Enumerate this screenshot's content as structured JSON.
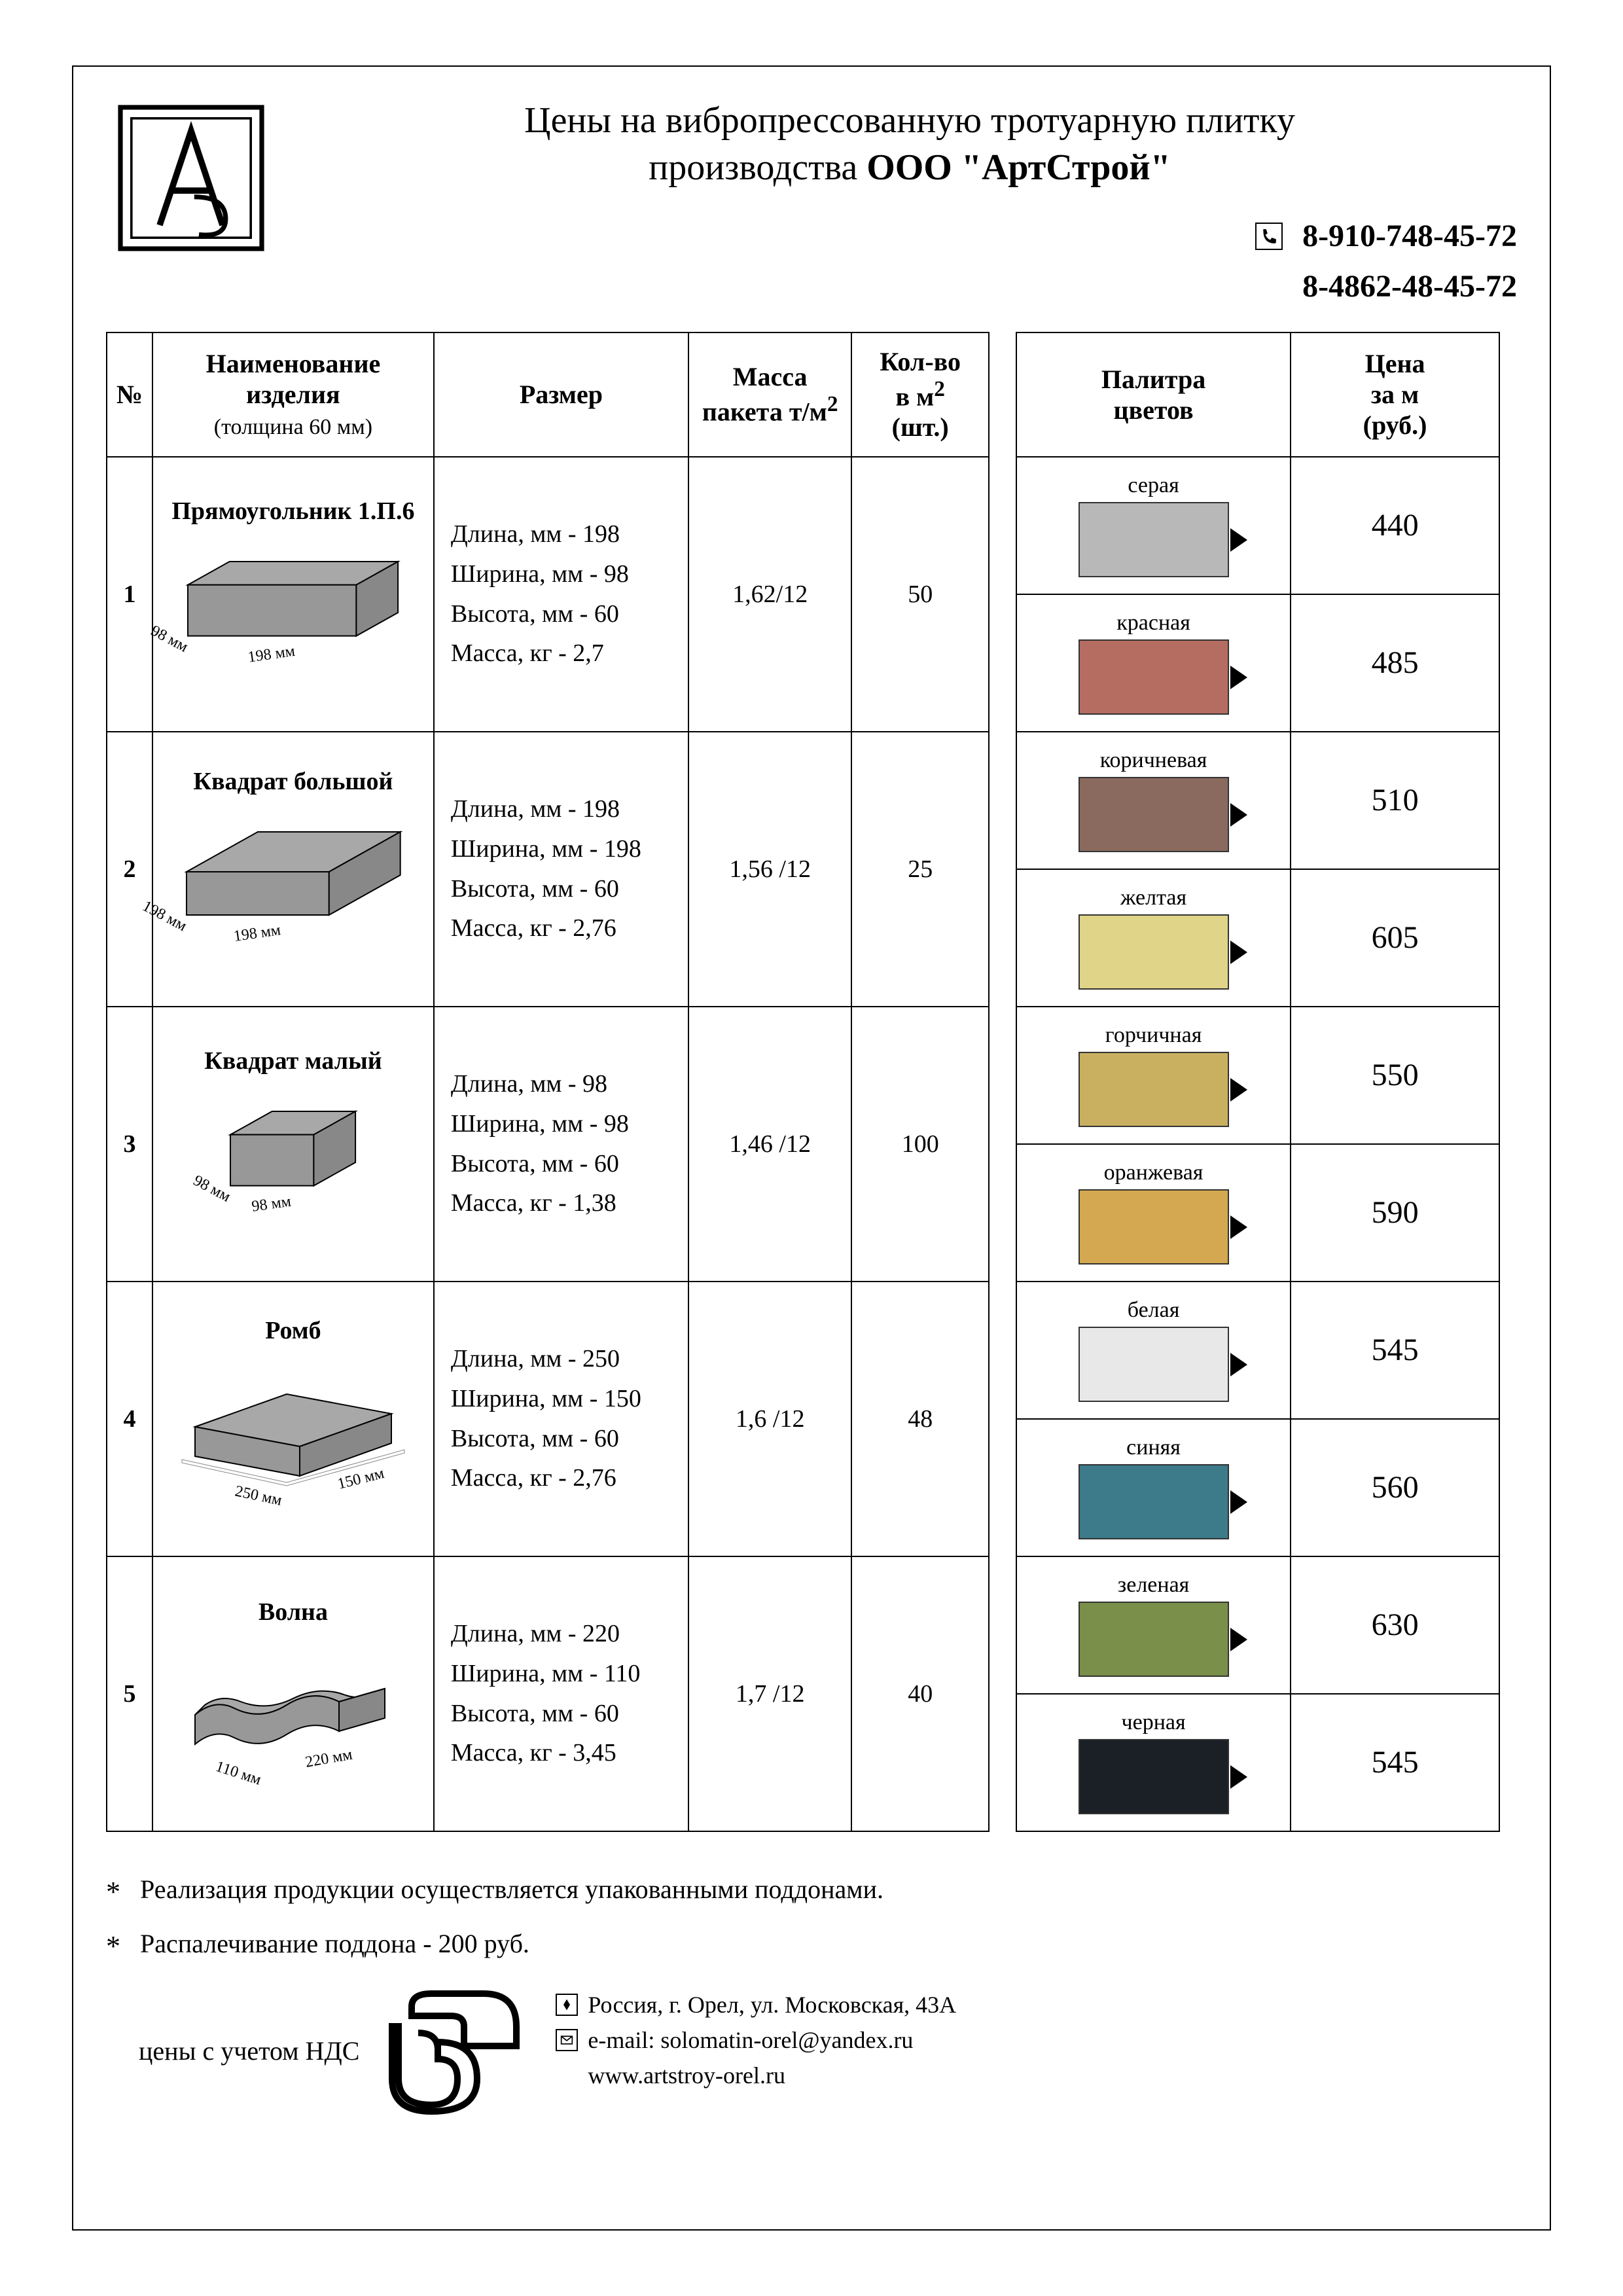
{
  "header": {
    "title_line1": "Цены на вибропрессованную тротуарную плитку",
    "title_line2_prefix": "производства ",
    "title_line2_bold": "ООО \"АртСтрой\"",
    "phone1": "8-910-748-45-72",
    "phone2": "8-4862-48-45-72"
  },
  "products_table": {
    "headers": {
      "num": "№",
      "name_l1": "Наименование",
      "name_l2": "изделия",
      "name_sub": "(толщина 60 мм)",
      "size": "Размер",
      "mass_l1": "Масса",
      "mass_l2": "пакета т/м",
      "mass_sup": "2",
      "qty_l1": "Кол-во",
      "qty_l2": "в м",
      "qty_sup": "2",
      "qty_l3": "(шт.)"
    },
    "rows": [
      {
        "num": "1",
        "name": "Прямоугольник 1.П.6",
        "dim1": "198 мм",
        "dim2": "98 мм",
        "size": [
          "Длина, мм - 198",
          "Ширина, мм - 98",
          "Высота, мм - 60",
          "Масса, кг - 2,7"
        ],
        "mass": "1,62/12",
        "qty": "50"
      },
      {
        "num": "2",
        "name": "Квадрат большой",
        "dim1": "198 мм",
        "dim2": "198 мм",
        "size": [
          "Длина, мм - 198",
          "Ширина, мм - 198",
          "Высота, мм - 60",
          "Масса, кг - 2,76"
        ],
        "mass": "1,56 /12",
        "qty": "25"
      },
      {
        "num": "3",
        "name": "Квадрат малый",
        "dim1": "98 мм",
        "dim2": "98 мм",
        "size": [
          "Длина, мм - 98",
          "Ширина, мм - 98",
          "Высота, мм - 60",
          "Масса, кг - 1,38"
        ],
        "mass": "1,46 /12",
        "qty": "100"
      },
      {
        "num": "4",
        "name": "Ромб",
        "dim1": "250 мм",
        "dim2": "150 мм",
        "size": [
          "Длина, мм - 250",
          "Ширина, мм - 150",
          "Высота, мм - 60",
          "Масса, кг - 2,76"
        ],
        "mass": "1,6 /12",
        "qty": "48"
      },
      {
        "num": "5",
        "name": "Волна",
        "dim1": "220 мм",
        "dim2": "110 мм",
        "size": [
          "Длина, мм - 220",
          "Ширина, мм - 110",
          "Высота, мм - 60",
          "Масса, кг - 3,45"
        ],
        "mass": "1,7 /12",
        "qty": "40"
      }
    ]
  },
  "palette_table": {
    "headers": {
      "palette_l1": "Палитра",
      "palette_l2": "цветов",
      "price_l1": "Цена",
      "price_l2": "за м",
      "price_l3": "(руб.)"
    },
    "rows": [
      {
        "label": "серая",
        "color": "#b8b8b8",
        "price": "440"
      },
      {
        "label": "красная",
        "color": "#b56d62",
        "price": "485"
      },
      {
        "label": "коричневая",
        "color": "#8a6a5e",
        "price": "510"
      },
      {
        "label": "желтая",
        "color": "#e0d488",
        "price": "605"
      },
      {
        "label": "горчичная",
        "color": "#c9b060",
        "price": "550"
      },
      {
        "label": "оранжевая",
        "color": "#d4a850",
        "price": "590"
      },
      {
        "label": "белая",
        "color": "#e8e8e8",
        "price": "545"
      },
      {
        "label": "синяя",
        "color": "#3d7a8a",
        "price": "560"
      },
      {
        "label": "зеленая",
        "color": "#7a8f4a",
        "price": "630"
      },
      {
        "label": "черная",
        "color": "#1a2025",
        "price": "545"
      }
    ]
  },
  "footer": {
    "note1": "Реализация продукции осуществляется упакованными поддонами.",
    "note2": "Распалечивание поддона - 200 руб.",
    "nds": "цены с учетом НДС",
    "address": "Россия, г. Орел, ул. Московская, 43А",
    "email_prefix": "e-mail: ",
    "email": "solomatin-orel@yandex.ru",
    "website": "www.artstroy-orel.ru"
  },
  "style": {
    "shape_fill_top": "#a8a8a8",
    "shape_fill_side": "#888888",
    "shape_fill_front": "#989898",
    "shape_stroke": "#000000"
  }
}
